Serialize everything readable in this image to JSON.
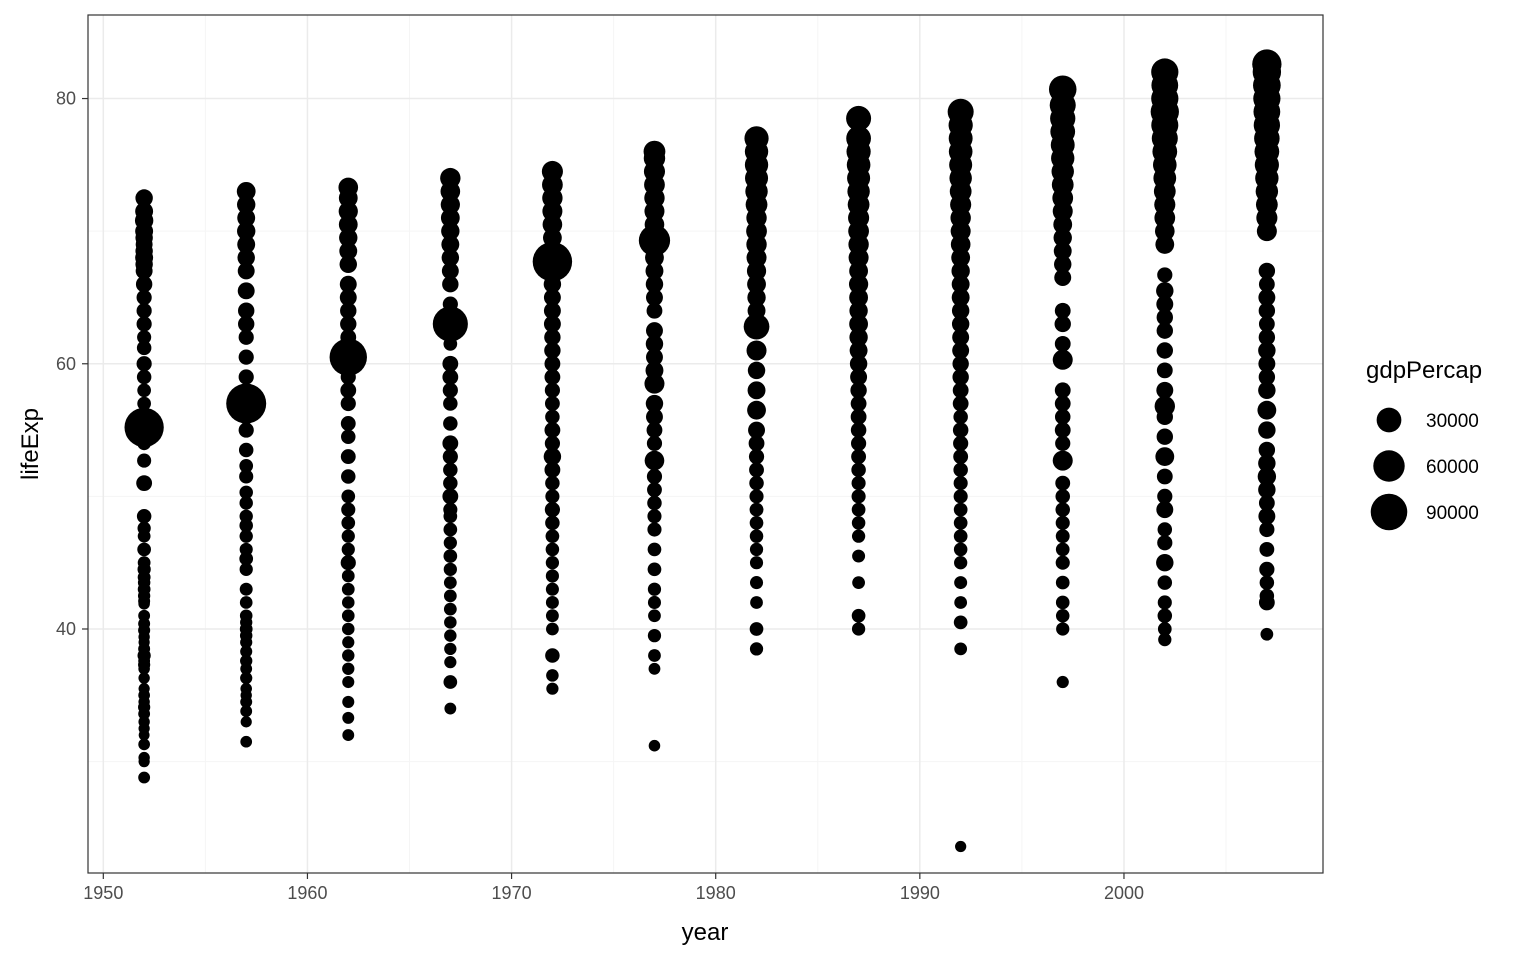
{
  "chart_data": {
    "type": "scatter",
    "xlabel": "year",
    "ylabel": "lifeExp",
    "xlim": [
      1949.25,
      2009.75
    ],
    "ylim": [
      21.6,
      86.3
    ],
    "x_ticks": [
      1950,
      1960,
      1970,
      1980,
      1990,
      2000
    ],
    "y_ticks": [
      40,
      60,
      80
    ],
    "grid": true,
    "legend": {
      "title": "gdpPercap",
      "position": "right",
      "entries": [
        {
          "label": "30000",
          "value": 30000
        },
        {
          "label": "60000",
          "value": 60000
        },
        {
          "label": "90000",
          "value": 90000
        }
      ]
    },
    "colors": {
      "points": "#000000",
      "panel_border": "#333333",
      "grid_major": "#ebebeb",
      "grid_minor": "#f5f5f5"
    },
    "series": [
      {
        "x": 1952,
        "lifeExp": [
          28.8,
          30.0,
          30.3,
          31.3,
          32.0,
          32.5,
          33.0,
          33.6,
          34.1,
          34.5,
          35.0,
          35.5,
          36.3,
          37.0,
          37.3,
          37.6,
          38.0,
          38.5,
          39.0,
          39.4,
          39.9,
          40.4,
          41.0,
          41.9,
          42.1,
          42.5,
          43.0,
          43.5,
          43.9,
          44.5,
          45.0,
          46.0,
          47.0,
          47.6,
          48.5,
          51.0,
          52.7,
          54.0,
          55.2,
          57.0,
          58.0,
          59.0,
          60.0,
          61.2,
          62.0,
          63.0,
          64.0,
          65.0,
          66.0,
          67.0,
          67.5,
          68.0,
          68.5,
          69.0,
          69.5,
          70.0,
          70.8,
          71.5,
          72.5
        ],
        "gdpPercap": [
          1200,
          800,
          900,
          1100,
          600,
          800,
          900,
          1200,
          1500,
          900,
          1100,
          800,
          900,
          1000,
          1500,
          1200,
          2500,
          1300,
          800,
          900,
          1400,
          1300,
          1200,
          1000,
          1300,
          1600,
          2000,
          1700,
          2100,
          2500,
          2000,
          3000,
          2000,
          2500,
          4000,
          6000,
          3500,
          3000,
          108382,
          3000,
          3000,
          4000,
          5000,
          4000,
          3500,
          5000,
          5000,
          5000,
          7000,
          8000,
          9000,
          10000,
          9000,
          8000,
          9000,
          10000,
          11000,
          10000,
          9000
        ]
      },
      {
        "x": 1957,
        "lifeExp": [
          31.5,
          33.0,
          33.8,
          34.5,
          35.0,
          35.5,
          36.3,
          37.0,
          37.6,
          38.3,
          39.0,
          39.5,
          40.0,
          40.5,
          41.0,
          42.0,
          43.0,
          44.5,
          45.3,
          46.0,
          47.0,
          47.8,
          48.5,
          49.5,
          50.3,
          51.5,
          52.3,
          53.5,
          55.0,
          56.0,
          57.0,
          58.0,
          59.0,
          60.5,
          62.0,
          63.0,
          64.0,
          65.5,
          67.0,
          68.0,
          69.0,
          70.0,
          71.0,
          72.0,
          73.0
        ],
        "gdpPercap": [
          1100,
          800,
          1200,
          1300,
          900,
          1000,
          1500,
          1200,
          1600,
          1400,
          1500,
          1700,
          2000,
          1600,
          1800,
          1900,
          2200,
          2500,
          3000,
          2400,
          2600,
          2800,
          2600,
          2700,
          2800,
          3500,
          3000,
          4000,
          5000,
          5000,
          113523,
          4000,
          5000,
          5000,
          5000,
          7000,
          7000,
          8000,
          8000,
          9000,
          10000,
          11000,
          10000,
          11000,
          12000
        ]
      },
      {
        "x": 1962,
        "lifeExp": [
          32.0,
          33.3,
          34.5,
          36.0,
          37.0,
          38.0,
          39.0,
          40.0,
          41.0,
          42.0,
          43.0,
          44.0,
          45.0,
          46.0,
          47.0,
          48.0,
          49.0,
          50.0,
          51.5,
          53.0,
          54.5,
          55.5,
          57.0,
          58.0,
          59.0,
          60.5,
          62.0,
          63.0,
          64.0,
          65.0,
          66.0,
          67.5,
          68.5,
          69.5,
          70.5,
          71.5,
          72.5,
          73.3
        ],
        "gdpPercap": [
          1200,
          1300,
          1400,
          1400,
          1600,
          1700,
          1500,
          1800,
          1900,
          1800,
          2000,
          2000,
          5000,
          2500,
          2500,
          3000,
          3500,
          3000,
          4000,
          4500,
          4000,
          4500,
          5000,
          6000,
          5000,
          95458,
          6000,
          7000,
          7000,
          8000,
          8000,
          9000,
          10000,
          11000,
          12000,
          13000,
          12000,
          14000
        ]
      },
      {
        "x": 1967,
        "lifeExp": [
          34.0,
          36.0,
          37.5,
          38.5,
          39.5,
          40.5,
          41.5,
          42.5,
          43.5,
          44.5,
          45.5,
          46.5,
          47.5,
          48.5,
          49.0,
          50.0,
          51.0,
          52.0,
          53.0,
          54.0,
          55.5,
          57.0,
          58.0,
          59.0,
          60.0,
          61.5,
          63.0,
          64.5,
          66.0,
          67.0,
          68.0,
          69.0,
          70.0,
          71.0,
          72.0,
          73.0,
          74.0
        ],
        "gdpPercap": [
          1200,
          3000,
          1500,
          1600,
          1700,
          1800,
          2000,
          2000,
          2000,
          2500,
          3000,
          2500,
          3000,
          3000,
          3500,
          6000,
          4000,
          4000,
          5000,
          6000,
          4000,
          4000,
          5000,
          6000,
          6000,
          3000,
          80895,
          5000,
          7000,
          8000,
          9000,
          10000,
          11000,
          12000,
          13000,
          14000,
          16000
        ]
      },
      {
        "x": 1972,
        "lifeExp": [
          35.5,
          36.5,
          38.0,
          40.0,
          41.0,
          42.0,
          43.0,
          44.0,
          45.0,
          46.0,
          47.0,
          48.0,
          49.0,
          50.0,
          51.0,
          52.0,
          53.0,
          54.0,
          55.0,
          56.0,
          57.0,
          58.0,
          59.0,
          60.0,
          61.0,
          62.0,
          63.0,
          64.0,
          65.0,
          66.0,
          67.7,
          68.5,
          69.5,
          70.5,
          71.5,
          72.5,
          73.5,
          74.5
        ],
        "gdpPercap": [
          1500,
          1800,
          4000,
          2000,
          2100,
          2200,
          2300,
          2400,
          2500,
          2800,
          3000,
          4000,
          5000,
          3500,
          4000,
          6000,
          9000,
          5000,
          6000,
          4000,
          4500,
          5000,
          6000,
          6000,
          7000,
          7000,
          8000,
          8000,
          8000,
          9000,
          109348,
          10000,
          12000,
          14000,
          15000,
          16000,
          17000,
          18000
        ]
      },
      {
        "x": 1977,
        "lifeExp": [
          31.2,
          37.0,
          38.0,
          39.5,
          41.0,
          42.0,
          43.0,
          44.5,
          46.0,
          47.5,
          48.5,
          49.5,
          50.5,
          51.5,
          52.7,
          54.0,
          55.0,
          56.0,
          57.0,
          58.5,
          59.5,
          60.5,
          61.5,
          62.5,
          64.0,
          65.0,
          66.0,
          67.0,
          68.0,
          69.3,
          70.5,
          71.5,
          72.5,
          73.5,
          74.5,
          75.5,
          76.0
        ],
        "gdpPercap": [
          1000,
          1200,
          2000,
          2500,
          2000,
          2300,
          2500,
          3000,
          3000,
          3500,
          3500,
          4000,
          4500,
          5000,
          14000,
          5000,
          6000,
          8000,
          9000,
          15000,
          10000,
          8000,
          9000,
          8000,
          6000,
          8000,
          9000,
          10000,
          12000,
          59265,
          14000,
          15000,
          16000,
          17000,
          18000,
          19000,
          20000
        ]
      },
      {
        "x": 1982,
        "lifeExp": [
          38.5,
          40.0,
          42.0,
          43.5,
          45.0,
          46.0,
          47.0,
          48.0,
          49.0,
          50.0,
          51.0,
          52.0,
          53.0,
          54.0,
          55.0,
          56.5,
          58.0,
          59.5,
          61.0,
          62.8,
          64.0,
          65.0,
          66.0,
          67.0,
          68.0,
          69.0,
          70.0,
          71.0,
          72.0,
          73.0,
          74.0,
          75.0,
          76.0,
          77.0
        ],
        "gdpPercap": [
          2500,
          3000,
          2000,
          2300,
          2400,
          2500,
          2800,
          3000,
          3200,
          3500,
          4000,
          4500,
          5000,
          6000,
          8000,
          12000,
          10000,
          9000,
          15000,
          33693,
          10000,
          11000,
          12000,
          13000,
          15000,
          16000,
          17000,
          16000,
          20000,
          22000,
          24000,
          25000,
          25000,
          28000
        ]
      },
      {
        "x": 1987,
        "lifeExp": [
          40.0,
          41.0,
          43.5,
          45.5,
          47.0,
          48.0,
          49.0,
          50.0,
          51.0,
          52.0,
          53.0,
          54.0,
          55.0,
          56.0,
          57.0,
          58.0,
          59.0,
          60.0,
          61.0,
          62.0,
          63.0,
          64.0,
          65.0,
          66.0,
          67.0,
          68.0,
          69.0,
          70.0,
          71.0,
          72.0,
          73.0,
          74.0,
          75.0,
          76.0,
          77.0,
          78.5
        ],
        "gdpPercap": [
          2500,
          3000,
          2000,
          2200,
          2500,
          2800,
          3000,
          3500,
          3500,
          4000,
          4500,
          5000,
          5500,
          6000,
          6000,
          7000,
          8000,
          9000,
          10000,
          11000,
          12000,
          11000,
          12000,
          13000,
          12000,
          15000,
          16000,
          17000,
          18000,
          20000,
          22000,
          24000,
          26000,
          28000,
          30000,
          31000
        ]
      },
      {
        "x": 1992,
        "lifeExp": [
          23.6,
          38.5,
          40.5,
          42.0,
          43.5,
          45.0,
          46.0,
          47.0,
          48.0,
          49.0,
          50.0,
          51.0,
          52.0,
          53.0,
          54.0,
          55.0,
          56.0,
          57.0,
          58.0,
          59.0,
          60.0,
          61.0,
          62.0,
          63.0,
          64.0,
          65.0,
          66.0,
          67.0,
          68.0,
          69.0,
          70.0,
          71.0,
          72.0,
          73.0,
          74.0,
          75.0,
          76.0,
          77.0,
          78.0,
          79.0
        ],
        "gdpPercap": [
          800,
          2000,
          3000,
          2000,
          2200,
          2500,
          2800,
          3000,
          3000,
          3000,
          3500,
          3500,
          4000,
          4500,
          5000,
          5500,
          4000,
          6000,
          6000,
          7000,
          7000,
          8000,
          8000,
          9000,
          9000,
          10000,
          10000,
          11000,
          12000,
          14000,
          15000,
          16000,
          18000,
          20000,
          22000,
          24000,
          26000,
          27000,
          28000,
          34932
        ]
      },
      {
        "x": 1997,
        "lifeExp": [
          36.0,
          40.0,
          41.0,
          42.0,
          43.5,
          45.0,
          46.0,
          47.0,
          48.0,
          49.0,
          50.0,
          51.0,
          52.7,
          54.0,
          55.0,
          56.0,
          57.0,
          58.0,
          60.3,
          61.5,
          63.0,
          64.0,
          66.5,
          67.5,
          68.5,
          69.5,
          70.5,
          71.5,
          72.5,
          73.5,
          74.5,
          75.5,
          76.5,
          77.5,
          78.5,
          79.5,
          80.7
        ],
        "gdpPercap": [
          1500,
          2500,
          2800,
          2900,
          3000,
          3500,
          3000,
          3200,
          3500,
          4000,
          4000,
          4500,
          15000,
          5000,
          6000,
          5500,
          6000,
          6000,
          15000,
          6000,
          7000,
          6000,
          8000,
          9000,
          10000,
          11000,
          12000,
          15000,
          17000,
          20000,
          22000,
          25000,
          27000,
          30000,
          32000,
          35000,
          41283
        ]
      },
      {
        "x": 2002,
        "lifeExp": [
          39.2,
          40.0,
          41.0,
          42.0,
          43.5,
          45.0,
          46.5,
          47.5,
          49.0,
          50.0,
          51.5,
          53.0,
          54.5,
          56.0,
          56.8,
          58.0,
          59.5,
          61.0,
          62.5,
          63.5,
          64.5,
          65.5,
          66.7,
          69.0,
          70.0,
          71.0,
          72.0,
          73.0,
          74.0,
          75.0,
          76.0,
          77.0,
          78.0,
          79.0,
          80.0,
          81.0,
          82.0
        ],
        "gdpPercap": [
          2500,
          3000,
          4000,
          3500,
          4000,
          9000,
          5000,
          4000,
          8000,
          5000,
          6000,
          12000,
          7000,
          7000,
          16000,
          8000,
          6000,
          7000,
          7000,
          7000,
          8000,
          9000,
          5000,
          12000,
          14000,
          17000,
          18000,
          20000,
          23000,
          26000,
          30000,
          35000,
          39000,
          44683,
          40000,
          38000,
          40000
        ]
      },
      {
        "x": 2007,
        "lifeExp": [
          39.6,
          42.0,
          42.5,
          43.5,
          44.5,
          46.0,
          47.5,
          48.5,
          49.5,
          50.5,
          51.5,
          52.5,
          53.5,
          55.0,
          56.5,
          58.0,
          59.0,
          60.0,
          61.0,
          62.0,
          63.0,
          64.0,
          65.0,
          66.0,
          67.0,
          70.0,
          71.0,
          72.0,
          73.0,
          74.0,
          75.0,
          76.0,
          77.0,
          78.0,
          79.0,
          80.0,
          81.0,
          82.0,
          82.6
        ],
        "gdpPercap": [
          2000,
          6000,
          4000,
          4000,
          5000,
          4500,
          5000,
          8000,
          6000,
          9000,
          11000,
          9000,
          7000,
          9000,
          12000,
          9000,
          7000,
          8000,
          9000,
          7000,
          6000,
          7000,
          8000,
          6000,
          7000,
          15000,
          18000,
          20000,
          22000,
          25000,
          28000,
          30000,
          33000,
          36000,
          38000,
          40000,
          42000,
          45000,
          49357
        ]
      }
    ]
  }
}
